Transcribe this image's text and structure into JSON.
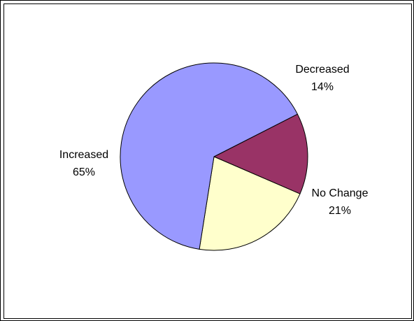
{
  "chart_data": {
    "type": "pie",
    "title": "",
    "slices": [
      {
        "name": "Decreased",
        "value": 14,
        "label": "14%",
        "color": "#993366"
      },
      {
        "name": "No Change",
        "value": 21,
        "label": "21%",
        "color": "#FFFFCC"
      },
      {
        "name": "Increased",
        "value": 65,
        "label": "65%",
        "color": "#9999FF"
      }
    ],
    "legend": "none",
    "data_labels": "category and percent beside slices"
  }
}
